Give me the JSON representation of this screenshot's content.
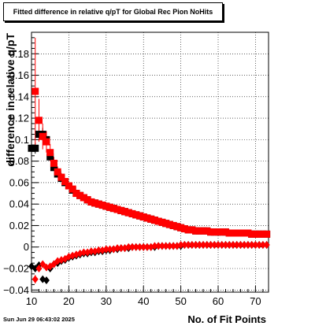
{
  "chart_data": {
    "type": "scatter",
    "title": "Fitted difference in relative q/pT for Global Rec Pion NoHits",
    "xlabel": "No. of Fit Points",
    "ylabel": "difference in relative q/pT",
    "xlim": [
      10,
      73.5
    ],
    "ylim": [
      -0.042,
      0.2
    ],
    "xticks": [
      10,
      20,
      30,
      40,
      50,
      60,
      70
    ],
    "yticks": [
      -0.04,
      -0.02,
      0,
      0.02,
      0.04,
      0.06,
      0.08,
      0.1,
      0.12,
      0.14,
      0.16,
      0.18
    ],
    "ytick_labels": [
      "−0.04",
      "−0.02",
      "0",
      "0.02",
      "0.04",
      "0.06",
      "0.08",
      "0.1",
      "0.12",
      "0.14",
      "0.16",
      "0.18"
    ],
    "grid": true,
    "series": [
      {
        "marker": "square",
        "color": "#000000",
        "x": [
          10,
          11,
          12,
          13,
          14,
          15,
          16,
          17,
          18,
          19,
          20,
          21,
          22,
          23,
          24,
          25,
          26,
          27,
          28,
          29,
          30,
          31,
          32,
          33,
          34,
          35,
          36,
          37,
          38,
          39,
          40,
          41,
          42,
          43,
          44,
          45,
          46,
          47,
          48,
          49,
          50,
          51,
          52,
          53,
          54,
          55,
          56,
          57,
          58,
          59,
          60,
          61,
          62,
          63,
          64,
          65,
          66,
          67,
          68,
          69,
          70,
          71,
          72,
          73
        ],
        "y": [
          0.092,
          0.092,
          0.105,
          0.105,
          0.1,
          0.084,
          0.074,
          0.068,
          0.064,
          0.06,
          0.057,
          0.053,
          0.05,
          0.048,
          0.046,
          0.044,
          0.042,
          0.041,
          0.04,
          0.039,
          0.038,
          0.037,
          0.036,
          0.035,
          0.034,
          0.033,
          0.032,
          0.031,
          0.03,
          0.029,
          0.028,
          0.027,
          0.026,
          0.025,
          0.024,
          0.023,
          0.022,
          0.021,
          0.02,
          0.019,
          0.018,
          0.017,
          0.016,
          0.016,
          0.015,
          0.015,
          0.015,
          0.015,
          0.014,
          0.014,
          0.014,
          0.014,
          0.014,
          0.013,
          0.013,
          0.013,
          0.013,
          0.013,
          0.013,
          0.012,
          0.012,
          0.012,
          0.012,
          0.012
        ],
        "err": [
          0.004,
          0.005,
          0.006,
          0.006,
          0.005,
          0.004,
          0.003,
          0.003,
          0.002,
          0.002,
          0.002,
          0.002,
          0.002,
          0.002,
          0.001,
          0.001,
          0.001,
          0.001,
          0.001,
          0.001,
          0.001,
          0.001,
          0.001,
          0.001,
          0.001,
          0.001,
          0.001,
          0.001,
          0.001,
          0.001,
          0.001,
          0.001,
          0.001,
          0.001,
          0.001,
          0.001,
          0.001,
          0.001,
          0.001,
          0.001,
          0.001,
          0.001,
          0.001,
          0.001,
          0.001,
          0.001,
          0.001,
          0.001,
          0.001,
          0.001,
          0.001,
          0.001,
          0.001,
          0.001,
          0.001,
          0.001,
          0.001,
          0.001,
          0.001,
          0.001,
          0.001,
          0.001,
          0.001,
          0.001
        ]
      },
      {
        "marker": "square",
        "color": "#ff0000",
        "x": [
          11,
          12,
          13,
          14,
          15,
          16,
          17,
          18,
          19,
          20,
          21,
          22,
          23,
          24,
          25,
          26,
          27,
          28,
          29,
          30,
          31,
          32,
          33,
          34,
          35,
          36,
          37,
          38,
          39,
          40,
          41,
          42,
          43,
          44,
          45,
          46,
          47,
          48,
          49,
          50,
          51,
          52,
          53,
          54,
          55,
          56,
          57,
          58,
          59,
          60,
          61,
          62,
          63,
          64,
          65,
          66,
          67,
          68,
          69,
          70,
          71,
          72,
          73
        ],
        "y": [
          0.145,
          0.118,
          0.103,
          0.098,
          0.088,
          0.078,
          0.07,
          0.065,
          0.061,
          0.057,
          0.054,
          0.05,
          0.048,
          0.046,
          0.044,
          0.042,
          0.041,
          0.04,
          0.039,
          0.038,
          0.037,
          0.036,
          0.035,
          0.034,
          0.033,
          0.032,
          0.031,
          0.03,
          0.029,
          0.028,
          0.027,
          0.026,
          0.025,
          0.024,
          0.023,
          0.022,
          0.021,
          0.02,
          0.019,
          0.018,
          0.017,
          0.016,
          0.016,
          0.015,
          0.015,
          0.015,
          0.015,
          0.014,
          0.014,
          0.014,
          0.014,
          0.014,
          0.013,
          0.013,
          0.013,
          0.013,
          0.013,
          0.013,
          0.012,
          0.012,
          0.012,
          0.012,
          0.012
        ],
        "err": [
          0.05,
          0.02,
          0.012,
          0.01,
          0.008,
          0.006,
          0.005,
          0.004,
          0.003,
          0.003,
          0.002,
          0.002,
          0.002,
          0.002,
          0.002,
          0.001,
          0.001,
          0.001,
          0.001,
          0.001,
          0.001,
          0.001,
          0.001,
          0.001,
          0.001,
          0.001,
          0.001,
          0.001,
          0.001,
          0.001,
          0.001,
          0.001,
          0.001,
          0.001,
          0.001,
          0.001,
          0.001,
          0.001,
          0.001,
          0.001,
          0.001,
          0.001,
          0.001,
          0.001,
          0.001,
          0.001,
          0.001,
          0.001,
          0.001,
          0.001,
          0.001,
          0.001,
          0.001,
          0.001,
          0.001,
          0.001,
          0.001,
          0.001,
          0.001,
          0.001,
          0.001,
          0.001,
          0.001
        ]
      },
      {
        "marker": "diamond",
        "color": "#000000",
        "x": [
          10,
          11,
          12,
          13,
          14,
          15,
          16,
          17,
          18,
          19,
          20,
          21,
          22,
          23,
          24,
          25,
          26,
          27,
          28,
          29,
          30,
          31,
          32,
          33,
          34,
          35,
          36,
          37,
          38,
          39,
          40,
          41,
          42,
          43,
          44,
          45,
          46,
          47,
          48,
          49,
          50,
          51,
          52,
          53,
          54,
          55,
          56,
          57,
          58,
          59,
          60,
          61,
          62,
          63,
          64,
          65,
          66,
          67,
          68,
          69,
          70,
          71,
          72,
          73
        ],
        "y": [
          -0.018,
          -0.02,
          -0.017,
          -0.03,
          -0.031,
          -0.02,
          -0.016,
          -0.015,
          -0.013,
          -0.012,
          -0.01,
          -0.009,
          -0.008,
          -0.007,
          -0.006,
          -0.006,
          -0.005,
          -0.005,
          -0.004,
          -0.004,
          -0.003,
          -0.003,
          -0.002,
          -0.002,
          -0.001,
          -0.001,
          -0.001,
          0,
          0,
          0,
          0,
          0,
          0,
          0,
          0.001,
          0.001,
          0.001,
          0.001,
          0.001,
          0.001,
          0.001,
          0.002,
          0.002,
          0.002,
          0.002,
          0.002,
          0.002,
          0.002,
          0.002,
          0.002,
          0.002,
          0.002,
          0.002,
          0.002,
          0.002,
          0.002,
          0.002,
          0.002,
          0.002,
          0.002,
          0.002,
          0.002,
          0.002,
          0.002
        ],
        "err": [
          0.003,
          0.003,
          0.003,
          0.003,
          0.003,
          0.002,
          0.002,
          0.002,
          0.002,
          0.001,
          0.001,
          0.001,
          0.001,
          0.001,
          0.001,
          0.001,
          0.001,
          0.001,
          0.001,
          0.001,
          0.001,
          0.001,
          0.001,
          0.001,
          0.001,
          0.001,
          0.001,
          0.001,
          0.001,
          0.001,
          0.001,
          0.001,
          0.001,
          0.001,
          0.001,
          0.001,
          0.001,
          0.001,
          0.001,
          0.001,
          0.001,
          0.001,
          0.001,
          0.001,
          0.001,
          0.001,
          0.001,
          0.001,
          0.001,
          0.001,
          0.001,
          0.001,
          0.001,
          0.001,
          0.001,
          0.001,
          0.001,
          0.001,
          0.001,
          0.001,
          0.001,
          0.001,
          0.001,
          0.001
        ]
      },
      {
        "marker": "diamond",
        "color": "#ff0000",
        "x": [
          11,
          12,
          13,
          14,
          15,
          16,
          17,
          18,
          19,
          20,
          21,
          22,
          23,
          24,
          25,
          26,
          27,
          28,
          29,
          30,
          31,
          32,
          33,
          34,
          35,
          36,
          37,
          38,
          39,
          40,
          41,
          42,
          43,
          44,
          45,
          46,
          47,
          48,
          49,
          50,
          51,
          52,
          53,
          54,
          55,
          56,
          57,
          58,
          59,
          60,
          61,
          62,
          63,
          64,
          65,
          66,
          67,
          68,
          69,
          70,
          71,
          72,
          73
        ],
        "y": [
          -0.03,
          -0.02,
          -0.016,
          -0.019,
          -0.018,
          -0.016,
          -0.013,
          -0.012,
          -0.011,
          -0.009,
          -0.008,
          -0.007,
          -0.006,
          -0.005,
          -0.005,
          -0.004,
          -0.004,
          -0.003,
          -0.003,
          -0.002,
          -0.002,
          -0.002,
          -0.001,
          -0.001,
          -0.001,
          0,
          0,
          0,
          0,
          0,
          0,
          0,
          0.001,
          0.001,
          0.001,
          0.001,
          0.001,
          0.001,
          0.001,
          0.002,
          0.002,
          0.002,
          0.002,
          0.002,
          0.002,
          0.002,
          0.002,
          0.002,
          0.002,
          0.002,
          0.002,
          0.002,
          0.002,
          0.002,
          0.002,
          0.002,
          0.002,
          0.002,
          0.002,
          0.002,
          0.002,
          0.002,
          0.002
        ],
        "err": [
          0.004,
          0.003,
          0.003,
          0.003,
          0.002,
          0.002,
          0.002,
          0.001,
          0.001,
          0.001,
          0.001,
          0.001,
          0.001,
          0.001,
          0.001,
          0.001,
          0.001,
          0.001,
          0.001,
          0.001,
          0.001,
          0.001,
          0.001,
          0.001,
          0.001,
          0.001,
          0.001,
          0.001,
          0.001,
          0.001,
          0.001,
          0.001,
          0.001,
          0.001,
          0.001,
          0.001,
          0.001,
          0.001,
          0.001,
          0.001,
          0.001,
          0.001,
          0.001,
          0.001,
          0.001,
          0.001,
          0.001,
          0.001,
          0.001,
          0.001,
          0.001,
          0.001,
          0.001,
          0.001,
          0.001,
          0.001,
          0.001,
          0.001,
          0.001,
          0.001,
          0.001,
          0.001,
          0.001
        ]
      }
    ]
  },
  "timestamp": "Sun Jun 29 06:43:02 2025"
}
